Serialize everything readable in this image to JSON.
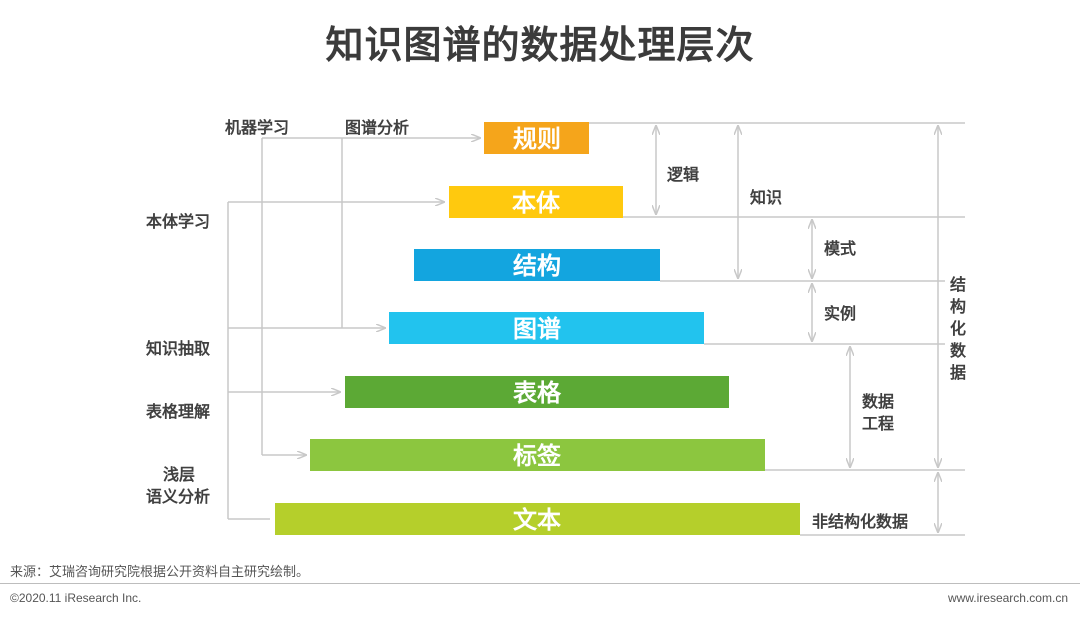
{
  "title": "知识图谱的数据处理层次",
  "top_methods": [
    "机器学习",
    "图谱分析"
  ],
  "left_methods": [
    "本体学习",
    "知识抽取",
    "表格理解",
    "浅层",
    "语义分析"
  ],
  "layers": [
    {
      "label": "规则",
      "color": "#f5a51b"
    },
    {
      "label": "本体",
      "color": "#ffc90e"
    },
    {
      "label": "结构",
      "color": "#13a5df"
    },
    {
      "label": "图谱",
      "color": "#22c3ee"
    },
    {
      "label": "表格",
      "color": "#5ca935"
    },
    {
      "label": "标签",
      "color": "#8cc63f"
    },
    {
      "label": "文本",
      "color": "#b5cf2b"
    }
  ],
  "right_labels": {
    "logic": "逻辑",
    "knowledge": "知识",
    "schema": "模式",
    "instance": "实例",
    "data_engineering_1": "数据",
    "data_engineering_2": "工程",
    "structured_data": [
      "结",
      "构",
      "化",
      "数",
      "据"
    ],
    "unstructured_data": "非结构化数据"
  },
  "footer": {
    "source": "来源：艾瑞咨询研究院根据公开资料自主研究绘制。",
    "copyright": "©2020.11 iResearch Inc.",
    "website": "www.iresearch.com.cn"
  }
}
